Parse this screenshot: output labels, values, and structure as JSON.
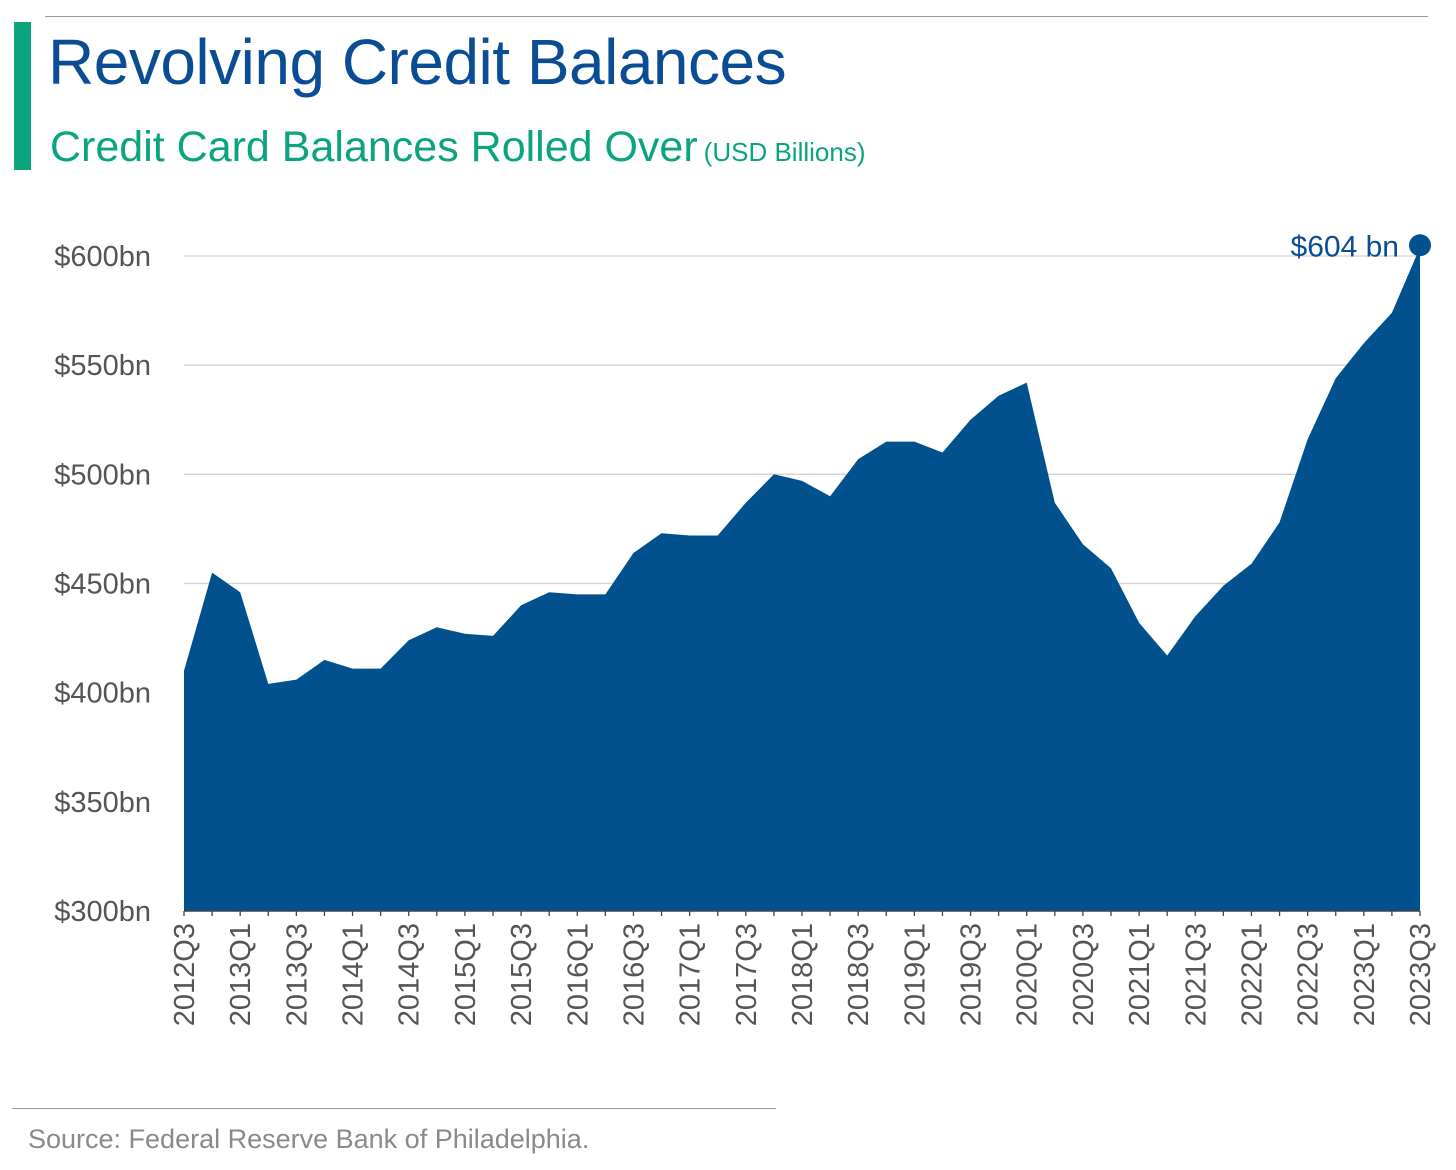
{
  "header": {
    "title": "Revolving Credit Balances",
    "subtitle": "Credit Card Balances Rolled Over",
    "subtitle_unit": "(USD Billions)"
  },
  "footer": {
    "source": "Source: Federal Reserve Bank of Philadelphia."
  },
  "colors": {
    "title": "#0a4d94",
    "accent": "#0aa47f",
    "area": "#02518f",
    "grid": "#d3d3d3",
    "axis_text": "#555555"
  },
  "chart_data": {
    "type": "area",
    "title": "Revolving Credit Balances",
    "subtitle": "Credit Card Balances Rolled Over (USD Billions)",
    "xlabel": "",
    "ylabel": "",
    "ylim": [
      300,
      600
    ],
    "yticks": [
      300,
      350,
      400,
      450,
      500,
      550,
      600
    ],
    "ytick_labels": [
      "$300bn",
      "$350bn",
      "$400bn",
      "$450bn",
      "$500bn",
      "$550bn",
      "$600bn"
    ],
    "grid": true,
    "x": [
      "2012Q3",
      "2012Q4",
      "2013Q1",
      "2013Q2",
      "2013Q3",
      "2013Q4",
      "2014Q1",
      "2014Q2",
      "2014Q3",
      "2014Q4",
      "2015Q1",
      "2015Q2",
      "2015Q3",
      "2015Q4",
      "2016Q1",
      "2016Q2",
      "2016Q3",
      "2016Q4",
      "2017Q1",
      "2017Q2",
      "2017Q3",
      "2017Q4",
      "2018Q1",
      "2018Q2",
      "2018Q3",
      "2018Q4",
      "2019Q1",
      "2019Q2",
      "2019Q3",
      "2019Q4",
      "2020Q1",
      "2020Q2",
      "2020Q3",
      "2020Q4",
      "2021Q1",
      "2021Q2",
      "2021Q3",
      "2021Q4",
      "2022Q1",
      "2022Q2",
      "2022Q3",
      "2022Q4",
      "2023Q1",
      "2023Q2",
      "2023Q3"
    ],
    "xtick_labels": [
      "2012Q3",
      "2013Q1",
      "2013Q3",
      "2014Q1",
      "2014Q3",
      "2015Q1",
      "2015Q3",
      "2016Q1",
      "2016Q3",
      "2017Q1",
      "2017Q3",
      "2018Q1",
      "2018Q3",
      "2019Q1",
      "2019Q3",
      "2020Q1",
      "2020Q3",
      "2021Q1",
      "2021Q3",
      "2022Q1",
      "2022Q3",
      "2023Q1",
      "2023Q3"
    ],
    "series": [
      {
        "name": "Credit Card Balances Rolled Over",
        "values": [
          410,
          455,
          446,
          404,
          406,
          415,
          411,
          411,
          424,
          430,
          427,
          426,
          440,
          446,
          445,
          445,
          464,
          473,
          472,
          472,
          487,
          500,
          497,
          490,
          507,
          515,
          515,
          510,
          525,
          536,
          542,
          487,
          468,
          457,
          432,
          417,
          435,
          449,
          459,
          478,
          516,
          544,
          560,
          574,
          604
        ]
      }
    ],
    "annotations": [
      {
        "x": "2023Q3",
        "y": 604,
        "text": "$604 bn"
      }
    ]
  }
}
